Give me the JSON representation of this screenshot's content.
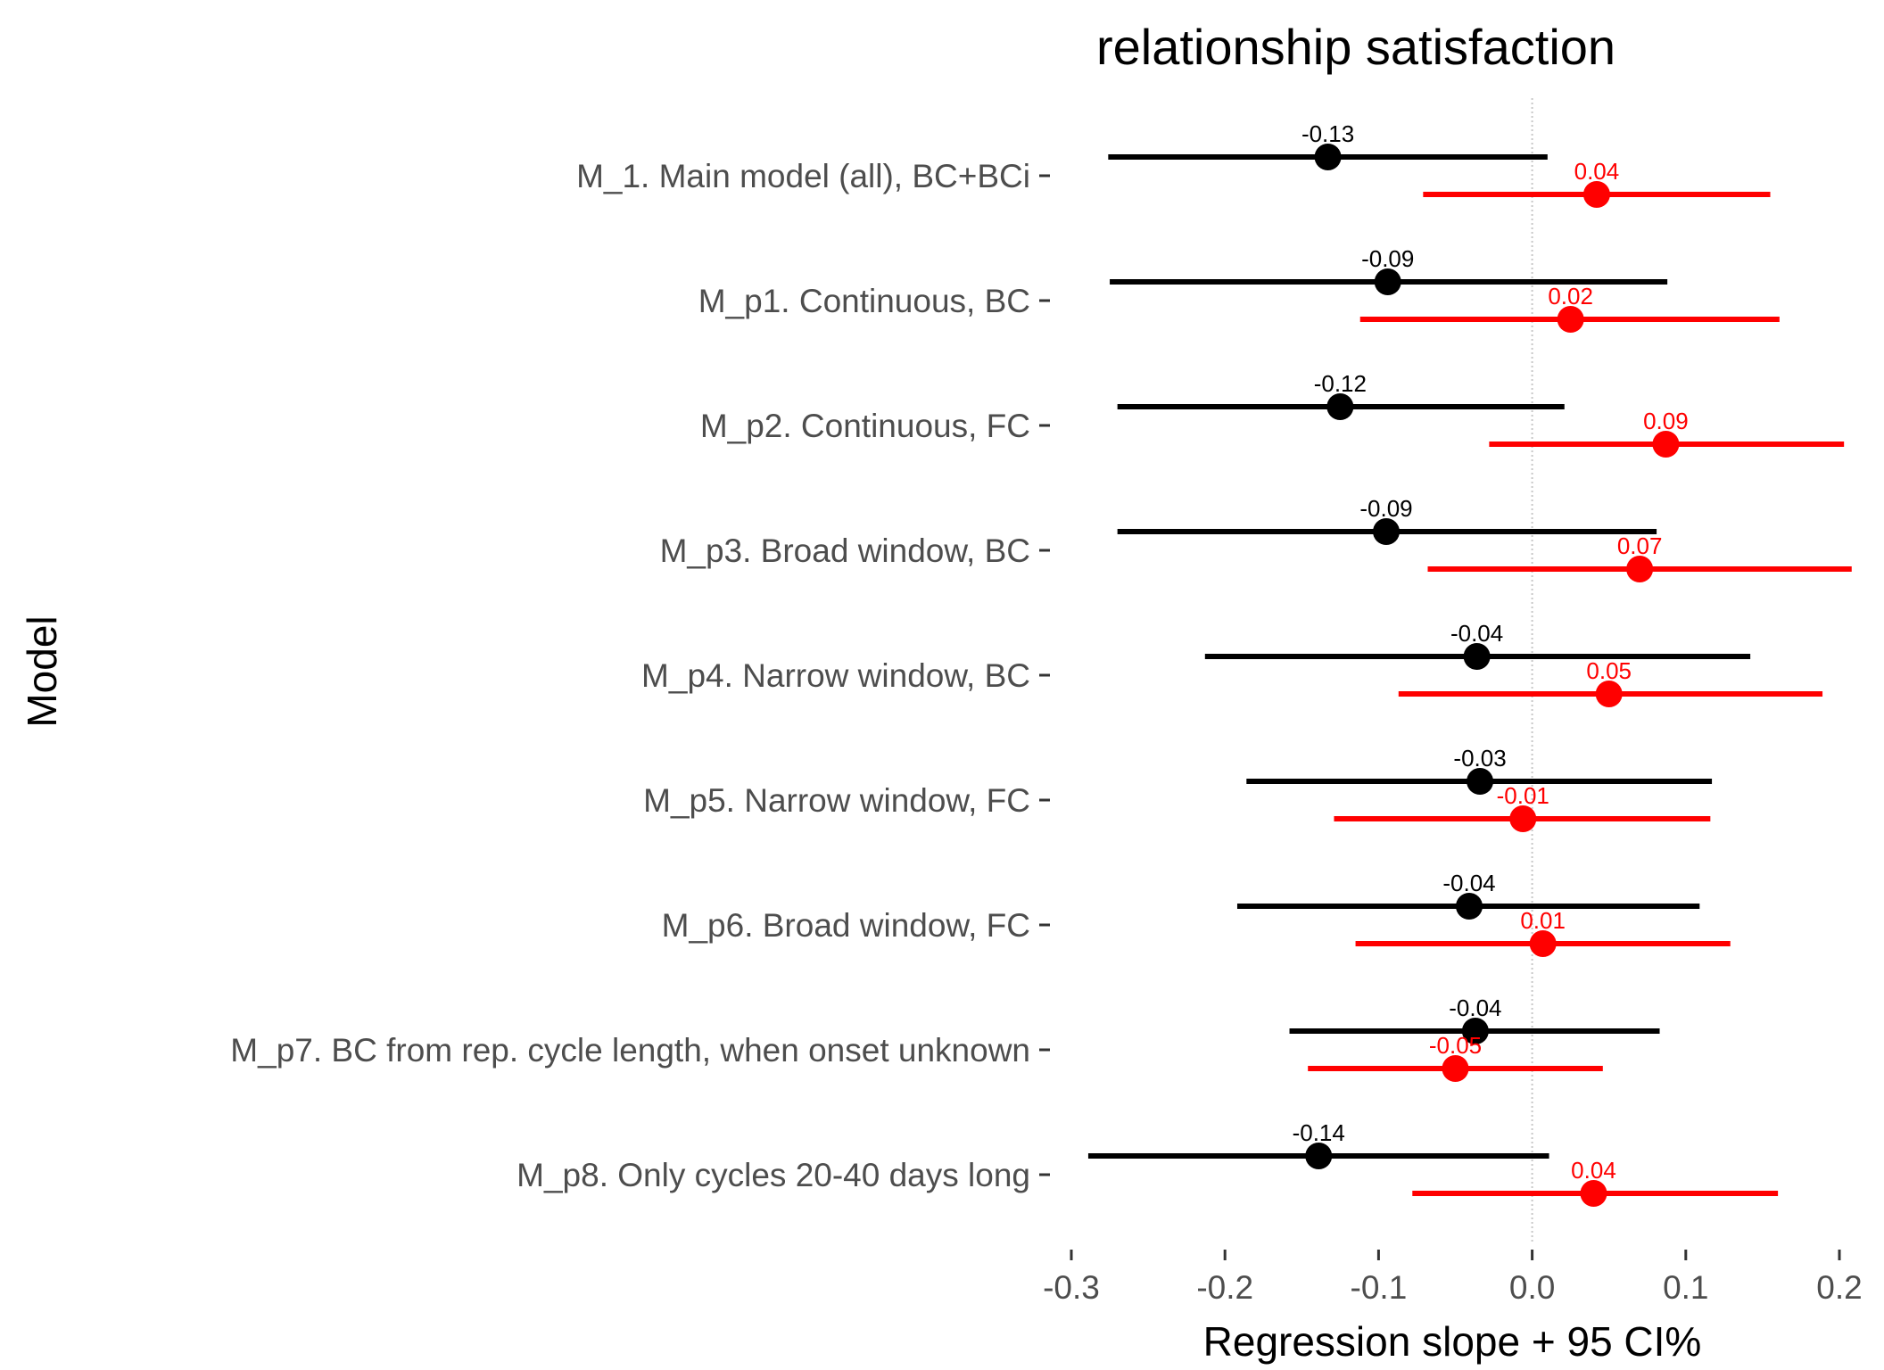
{
  "chart_data": {
    "type": "scatter",
    "subtype": "forest-plot",
    "title": "relationship satisfaction",
    "xlabel": "Regression slope + 95 CI%",
    "ylabel": "Model",
    "xlim": [
      -0.3,
      0.2
    ],
    "xticks": [
      -0.3,
      -0.2,
      -0.1,
      0.0,
      0.1,
      0.2
    ],
    "xtick_labels": [
      "-0.3",
      "-0.2",
      "-0.1",
      "0.0",
      "0.1",
      "0.2"
    ],
    "reference_line_x": 0,
    "grid": false,
    "legend": "none",
    "categories": [
      "M_1. Main model (all), BC+BCi",
      "M_p1. Continuous, BC",
      "M_p2. Continuous, FC",
      "M_p3. Broad window, BC",
      "M_p4. Narrow window, BC",
      "M_p5. Narrow window, FC",
      "M_p6. Broad window, FC",
      "M_p7. BC from rep. cycle length, when onset unknown",
      "M_p8. Only cycles 20-40 days long"
    ],
    "series": [
      {
        "color": "#000000",
        "estimates": [
          -0.133,
          -0.094,
          -0.125,
          -0.095,
          -0.036,
          -0.034,
          -0.041,
          -0.037,
          -0.139
        ],
        "ci_low": [
          -0.276,
          -0.275,
          -0.27,
          -0.27,
          -0.213,
          -0.186,
          -0.192,
          -0.158,
          -0.289
        ],
        "ci_high": [
          0.01,
          0.088,
          0.021,
          0.081,
          0.142,
          0.117,
          0.109,
          0.083,
          0.011
        ],
        "labels": [
          "-0.13",
          "-0.09",
          "-0.12",
          "-0.09",
          "-0.04",
          "-0.03",
          "-0.04",
          "-0.04",
          "-0.14"
        ]
      },
      {
        "color": "#ff0000",
        "estimates": [
          0.042,
          0.025,
          0.087,
          0.07,
          0.05,
          -0.006,
          0.007,
          -0.05,
          0.04
        ],
        "ci_low": [
          -0.071,
          -0.112,
          -0.028,
          -0.068,
          -0.087,
          -0.129,
          -0.115,
          -0.146,
          -0.078
        ],
        "ci_high": [
          0.155,
          0.161,
          0.203,
          0.208,
          0.189,
          0.116,
          0.129,
          0.046,
          0.16
        ],
        "labels": [
          "0.04",
          "0.02",
          "0.09",
          "0.07",
          "0.05",
          "-0.01",
          "0.01",
          "-0.05",
          "0.04"
        ]
      }
    ]
  }
}
